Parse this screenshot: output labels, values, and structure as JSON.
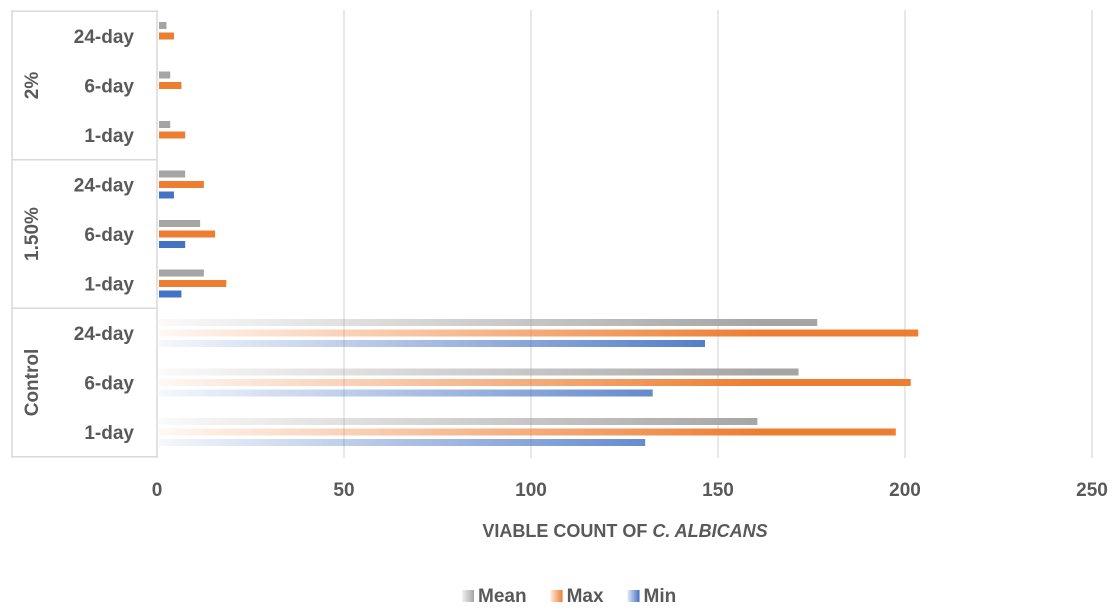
{
  "chart_data": {
    "type": "bar",
    "orientation": "horizontal",
    "xlabel_prefix": "VIABLE COUNT OF ",
    "xlabel_italic": "C. ALBICANS",
    "xlim": [
      0,
      250
    ],
    "xticks": [
      "0",
      "50",
      "100",
      "150",
      "200",
      "250"
    ],
    "grid": true,
    "legend_position": "bottom",
    "groups": [
      {
        "label": "Control",
        "categories": [
          "1-day",
          "6-day",
          "24-day"
        ]
      },
      {
        "label": "1.50%",
        "categories": [
          "1-day",
          "6-day",
          "24-day"
        ]
      },
      {
        "label": "2%",
        "categories": [
          "1-day",
          "6-day",
          "24-day"
        ]
      }
    ],
    "series": [
      {
        "name": "Mean",
        "color": "#a5a5a5",
        "values": [
          160,
          171,
          176,
          12,
          11,
          7,
          3,
          3,
          2
        ]
      },
      {
        "name": "Max",
        "color": "#ed7d31",
        "values": [
          197,
          201,
          203,
          18,
          15,
          12,
          7,
          6,
          4
        ]
      },
      {
        "name": "Min",
        "color": "#4472c4",
        "values": [
          130,
          132,
          146,
          6,
          7,
          4,
          null,
          null,
          null
        ]
      }
    ]
  }
}
